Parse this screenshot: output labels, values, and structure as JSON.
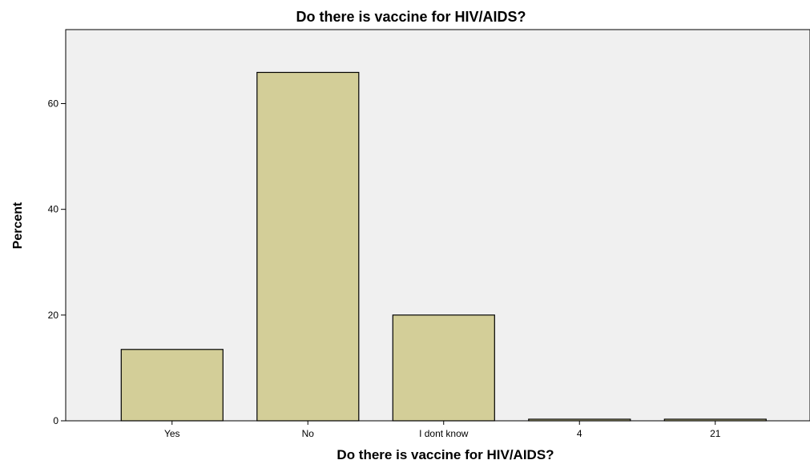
{
  "chart_data": {
    "type": "bar",
    "title": "Do there is vaccine for HIV/AIDS?",
    "xlabel": "Do there is vaccine for HIV/AIDS?",
    "ylabel": "Percent",
    "categories": [
      "Yes",
      "No",
      "I dont know",
      "4",
      "21"
    ],
    "values": [
      13.5,
      65.9,
      20.0,
      0.3,
      0.3
    ],
    "ylim": [
      0,
      74
    ],
    "yticks": [
      0,
      20,
      40,
      60
    ],
    "grid": false,
    "legend": "none",
    "colors": {
      "bar_fill": "#d3ce98",
      "bar_stroke": "#000000",
      "plot_background": "#f0f0f0",
      "axis": "#000000"
    }
  }
}
